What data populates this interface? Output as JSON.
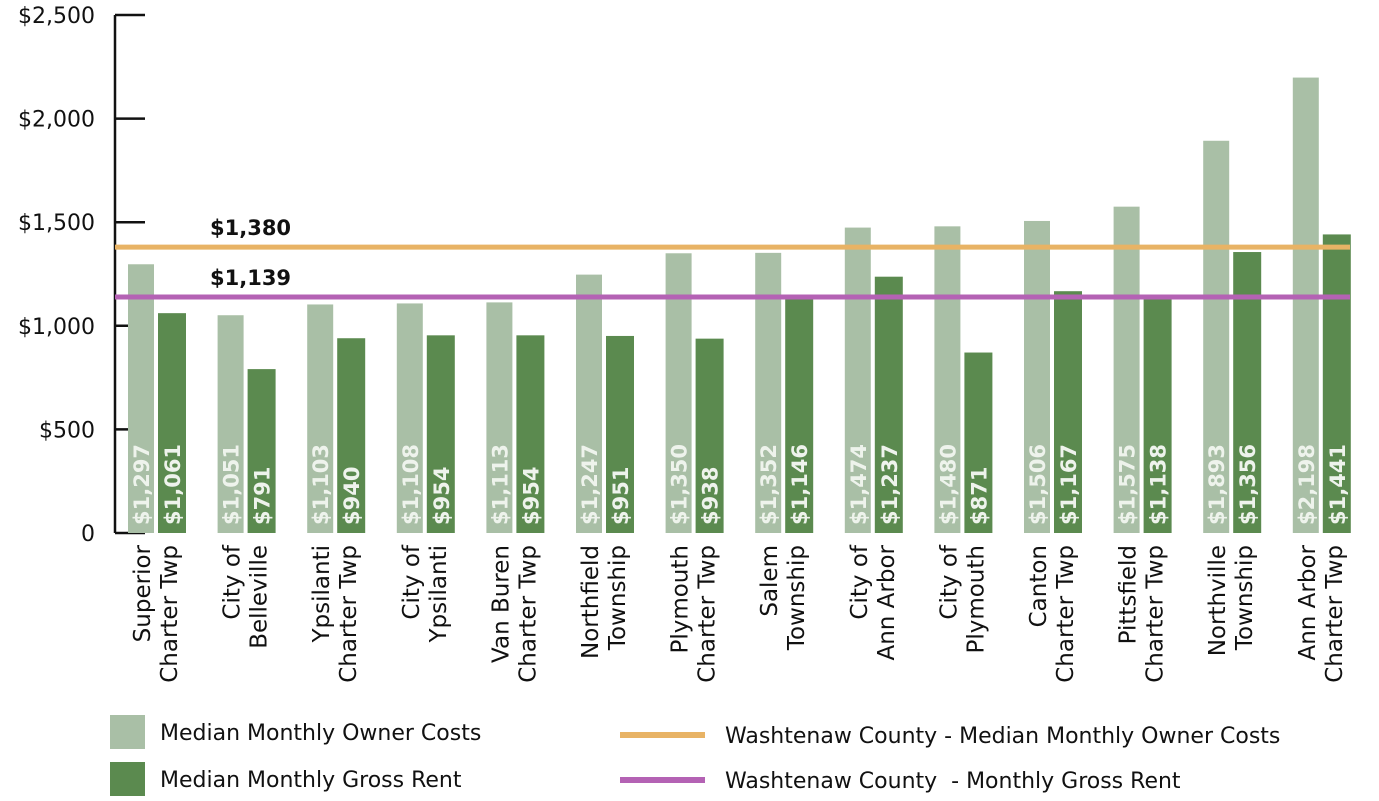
{
  "chart_data": {
    "type": "bar",
    "categories": [
      [
        "Superior",
        "Charter Twp"
      ],
      [
        "City of",
        "Belleville"
      ],
      [
        "Ypsilanti",
        "Charter Twp"
      ],
      [
        "City of",
        "Ypsilanti"
      ],
      [
        "Van Buren",
        "Charter Twp"
      ],
      [
        "Northfield",
        "Township"
      ],
      [
        "Plymouth",
        "Charter Twp"
      ],
      [
        "Salem",
        "Township"
      ],
      [
        "City of",
        "Ann Arbor"
      ],
      [
        "City of",
        "Plymouth"
      ],
      [
        "Canton",
        "Charter Twp"
      ],
      [
        "Pittsfield",
        "Charter Twp"
      ],
      [
        "Northville",
        "Township"
      ],
      [
        "Ann Arbor",
        "Charter Twp"
      ]
    ],
    "series": [
      {
        "name": "Median Monthly Owner Costs",
        "color": "#a9bfa6",
        "values": [
          1297,
          1051,
          1103,
          1108,
          1113,
          1247,
          1350,
          1352,
          1474,
          1480,
          1506,
          1575,
          1893,
          2198
        ],
        "value_labels": [
          "$1,297",
          "$1,051",
          "$1,103",
          "$1,108",
          "$1,113",
          "$1,247",
          "$1,350",
          "$1,352",
          "$1,474",
          "$1,480",
          "$1,506",
          "$1,575",
          "$1,893",
          "$2,198"
        ]
      },
      {
        "name": "Median Monthly Gross Rent",
        "color": "#5b8a4f",
        "values": [
          1061,
          791,
          940,
          954,
          954,
          951,
          938,
          1146,
          1237,
          871,
          1167,
          1138,
          1356,
          1441
        ],
        "value_labels": [
          "$1,061",
          "$791",
          "$940",
          "$954",
          "$954",
          "$951",
          "$938",
          "$1,146",
          "$1,237",
          "$871",
          "$1,167",
          "$1,138",
          "$1,356",
          "$1,441"
        ]
      }
    ],
    "reference_lines": [
      {
        "name": "Washtenaw County - Median Monthly Owner Costs",
        "value": 1380,
        "label": "$1,380",
        "color": "#e8b365"
      },
      {
        "name": "Washtenaw County  - Monthly Gross Rent",
        "value": 1139,
        "label": "$1,139",
        "color": "#b462b4"
      }
    ],
    "ylim": [
      0,
      2500
    ],
    "yticks": [
      0,
      {
        "value": 500,
        "label": "$500"
      },
      {
        "value": 1000,
        "label": "$1,000"
      },
      {
        "value": 1500,
        "label": "$1,500"
      },
      {
        "value": 2000,
        "label": "$2,000"
      },
      {
        "value": 2500,
        "label": "$2,500"
      }
    ]
  }
}
